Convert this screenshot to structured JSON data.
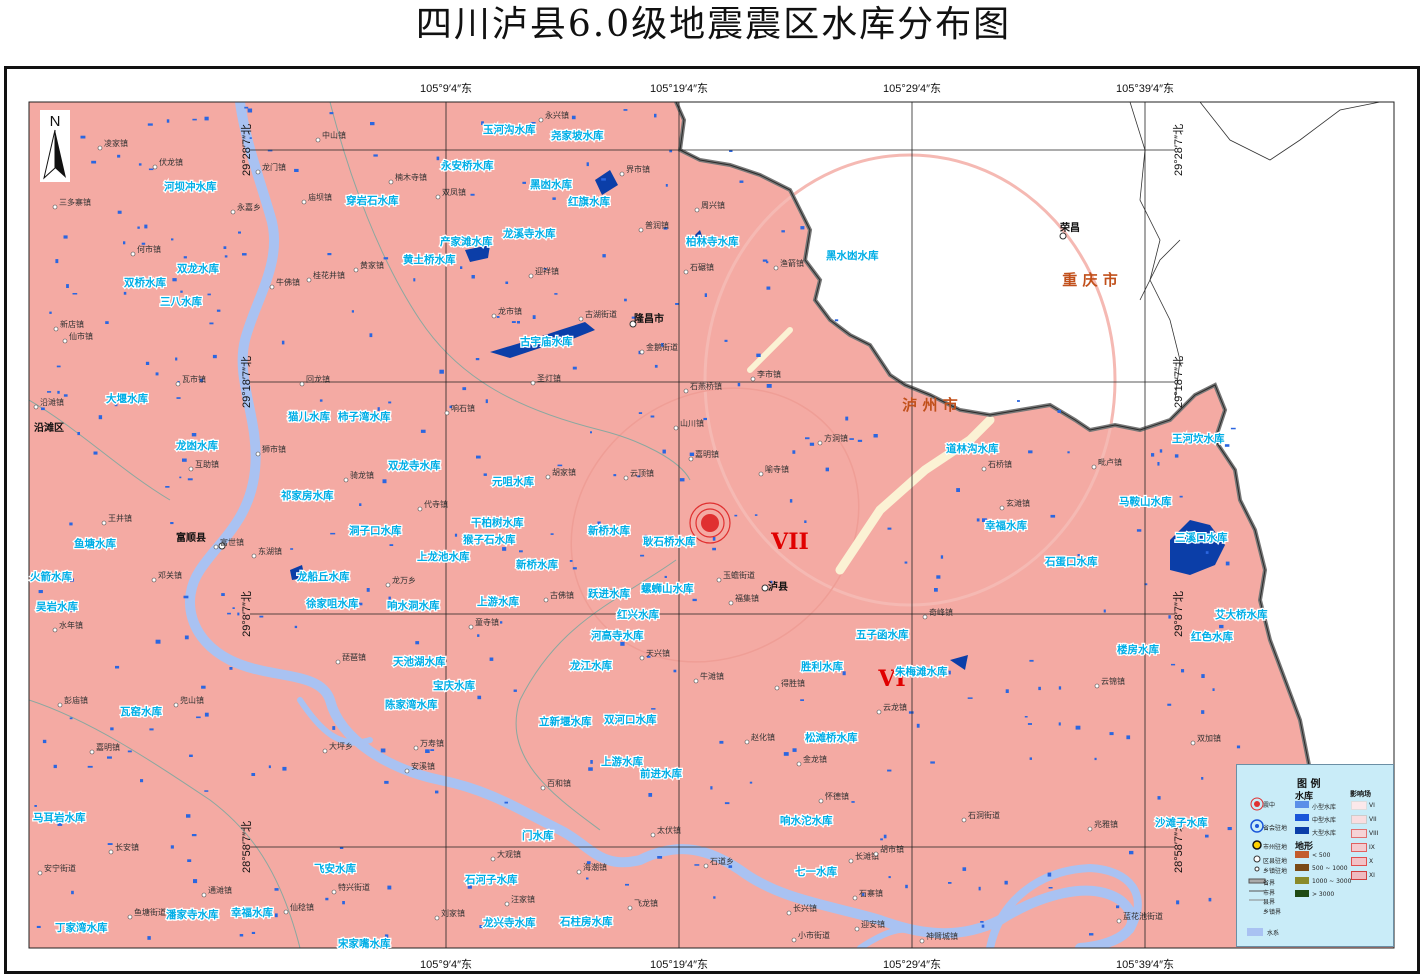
{
  "title": "四川泸县6.0级地震震区水库分布图",
  "colors": {
    "land": "#f4aaa3",
    "zone_vi": "#f7b1aa",
    "reservoir_small": "#5b8fe8",
    "reservoir_medium": "#1a56d9",
    "reservoir_large": "#0b3ea8",
    "river": "#a9c2f2",
    "reservoir_label": "#00aee6",
    "province_label": "#c1501b",
    "intensity_label": "#e00000",
    "legend_bg": "#c9ecf8"
  },
  "axes": {
    "lon_top": [
      "105°9′4″东",
      "105°19′4″东",
      "105°29′4″东",
      "105°39′4″东"
    ],
    "lon_bottom": [
      "105°9′4″东",
      "105°19′4″东",
      "105°29′4″东",
      "105°39′4″东"
    ],
    "lat_left": [
      "29°28′7″北",
      "29°18′7″北",
      "29°8′7″北",
      "28°58′7″北"
    ],
    "lat_right": [
      "29°28′7″北",
      "29°18′7″北",
      "29°8′7″北",
      "28°58′7″北"
    ]
  },
  "north_label": "N",
  "intensity": {
    "vii": "VII",
    "vi": "VI"
  },
  "regions": [
    {
      "name": "重 庆 市",
      "kind": "province"
    },
    {
      "name": "泸 州 市",
      "kind": "province"
    }
  ],
  "cities": [
    {
      "name": "荣昌"
    },
    {
      "name": "隆昌市"
    },
    {
      "name": "泸县"
    },
    {
      "name": "富顺县"
    },
    {
      "name": "沿滩区"
    }
  ],
  "towns": [
    "永兴镇",
    "中山镇",
    "凌家镇",
    "伏龙镇",
    "龙门镇",
    "三多寨镇",
    "永嘉乡",
    "楠木寺镇",
    "庙坝镇",
    "双凤镇",
    "界市镇",
    "周兴镇",
    "普润镇",
    "何市镇",
    "桂花井镇",
    "黄家镇",
    "牛佛镇",
    "迎祥镇",
    "石碾镇",
    "渔箭镇",
    "龙市镇",
    "古湖街道",
    "新店镇",
    "仙市镇",
    "金鹅街道",
    "瓦市镇",
    "回龙镇",
    "圣灯镇",
    "李市镇",
    "石燕桥镇",
    "沿滩镇",
    "响石镇",
    "山川镇",
    "方洞镇",
    "互助镇",
    "狮市镇",
    "嘉明镇",
    "喻寺镇",
    "骑龙镇",
    "胡家镇",
    "云顶镇",
    "毗卢镇",
    "代寺镇",
    "石桥镇",
    "玄滩镇",
    "王井镇",
    "富世镇",
    "东湖镇",
    "邓关镇",
    "龙万乡",
    "玉蟾街道",
    "福集镇",
    "古佛镇",
    "立石镇",
    "水年镇",
    "童寺镇",
    "奇峰镇",
    "天兴镇",
    "琵琶镇",
    "牛滩镇",
    "得胜镇",
    "云锦镇",
    "彭庙镇",
    "兜山镇",
    "云龙镇",
    "万寿镇",
    "嘉明镇",
    "大坪乡",
    "安溪镇",
    "赵化镇",
    "金龙镇",
    "双加镇",
    "百和镇",
    "怀德镇",
    "石洞街道",
    "兆雅镇",
    "长安镇",
    "太伏镇",
    "大观镇",
    "海潮镇",
    "石道乡",
    "长滩镇",
    "胡市镇",
    "安宁街道",
    "特兴街道",
    "汪家镇",
    "飞龙镇",
    "石寨镇",
    "通滩镇",
    "鱼塘街道",
    "仙稔镇",
    "刘家镇",
    "长兴镇",
    "迎安镇",
    "蓝花池街道",
    "小市街道",
    "神臂城镇",
    "红星街道",
    "罗汉街道"
  ],
  "reservoirs": [
    "玉河沟水库",
    "尧家坡水库",
    "永安桥水库",
    "黑凼水库",
    "红旗水库",
    "河坝冲水库",
    "穿岩石水库",
    "产家滩水库",
    "龙溪寺水库",
    "柏林寺水库",
    "黑水凼水库",
    "黄土桥水库",
    "双龙水库",
    "双桥水库",
    "三八水库",
    "古宇庙水库",
    "大堰水库",
    "猫儿水库",
    "柿子湾水库",
    "道林沟水库",
    "王河坎水库",
    "龙凼水库",
    "双龙寺水库",
    "元咀水库",
    "马鞍山水库",
    "祁家房水库",
    "干柏树水库",
    "幸福水库",
    "洞子口水库",
    "新桥水库",
    "耿石桥水库",
    "猴子石水库",
    "三溪口水库",
    "鱼塘水库",
    "上龙池水库",
    "新桥水库",
    "石蛋口水库",
    "火箭水库",
    "龙船丘水库",
    "螺蛳山水库",
    "吴岩水库",
    "徐家咀水库",
    "响水洞水库",
    "上游水库",
    "跃进水库",
    "红兴水库",
    "艾大桥水库",
    "河高寺水库",
    "五子函水库",
    "楼房水库",
    "红色水库",
    "天池湖水库",
    "龙江水库",
    "胜利水库",
    "朱梅滩水库",
    "宝庆水库",
    "瓦窑水库",
    "陈家湾水库",
    "立新堰水库",
    "双河口水库",
    "松滩桥水库",
    "上游水库",
    "前进水库",
    "马耳岩水库",
    "响水沱水库",
    "沙滩子水库",
    "门水库",
    "飞安水库",
    "石河子水库",
    "七一水库",
    "丁家湾水库",
    "潘家寺水库",
    "幸福水库",
    "龙兴寺水库",
    "石柱房水库",
    "宋家嘴水库"
  ],
  "legend": {
    "title": "图  例",
    "reservoir_heading": "水库",
    "terrain_heading": "地形",
    "intensity_heading": "影响场",
    "items": {
      "epicenter": "震中",
      "provincial_capital": "省会驻地",
      "city_seat": "市州驻地",
      "county_seat": "区县驻地",
      "town_seat": "乡镇驻地",
      "province_border": "省界",
      "city_border": "市界",
      "county_border": "县界",
      "town_border": "乡镇界",
      "water": "水系",
      "small_reservoir": "小型水库",
      "medium_reservoir": "中型水库",
      "large_reservoir": "大型水库",
      "elev_1": "< 500",
      "elev_2": "500 ~ 1000",
      "elev_3": "1000 ~ 3000",
      "elev_4": "> 3000",
      "int_6": "VI",
      "int_7": "VII",
      "int_8": "VIII",
      "int_9": "IX",
      "int_10": "X",
      "int_11": "XI"
    }
  }
}
